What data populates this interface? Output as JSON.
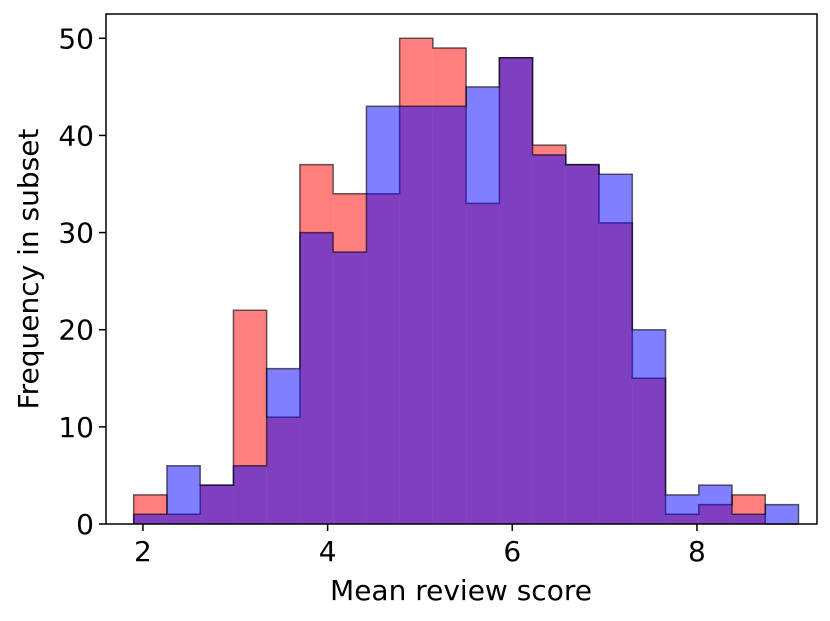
{
  "chart_data": {
    "type": "histogram",
    "xlabel": "Mean review score",
    "ylabel": "Frequency in subset",
    "xlim": [
      1.6,
      9.3
    ],
    "ylim": [
      0,
      52.5
    ],
    "xticks": [
      2,
      4,
      6,
      8
    ],
    "yticks": [
      0,
      10,
      20,
      30,
      40,
      50
    ],
    "bin_edges": [
      1.9,
      2.26,
      2.62,
      2.98,
      3.34,
      3.7,
      4.06,
      4.42,
      4.78,
      5.14,
      5.5,
      5.86,
      6.22,
      6.58,
      6.94,
      7.3,
      7.66,
      8.02,
      8.38,
      8.74,
      9.1
    ],
    "series": [
      {
        "color": "#ff0000",
        "alpha": 0.5,
        "counts": [
          3,
          1,
          4,
          22,
          11,
          37,
          34,
          34,
          50,
          49,
          33,
          48,
          39,
          37,
          31,
          15,
          1,
          2,
          3,
          0
        ]
      },
      {
        "color": "#0000ff",
        "alpha": 0.5,
        "counts": [
          1,
          6,
          4,
          6,
          16,
          30,
          28,
          43,
          43,
          43,
          45,
          48,
          38,
          37,
          36,
          20,
          3,
          4,
          1,
          2
        ]
      }
    ],
    "grid": false,
    "legend": false
  }
}
